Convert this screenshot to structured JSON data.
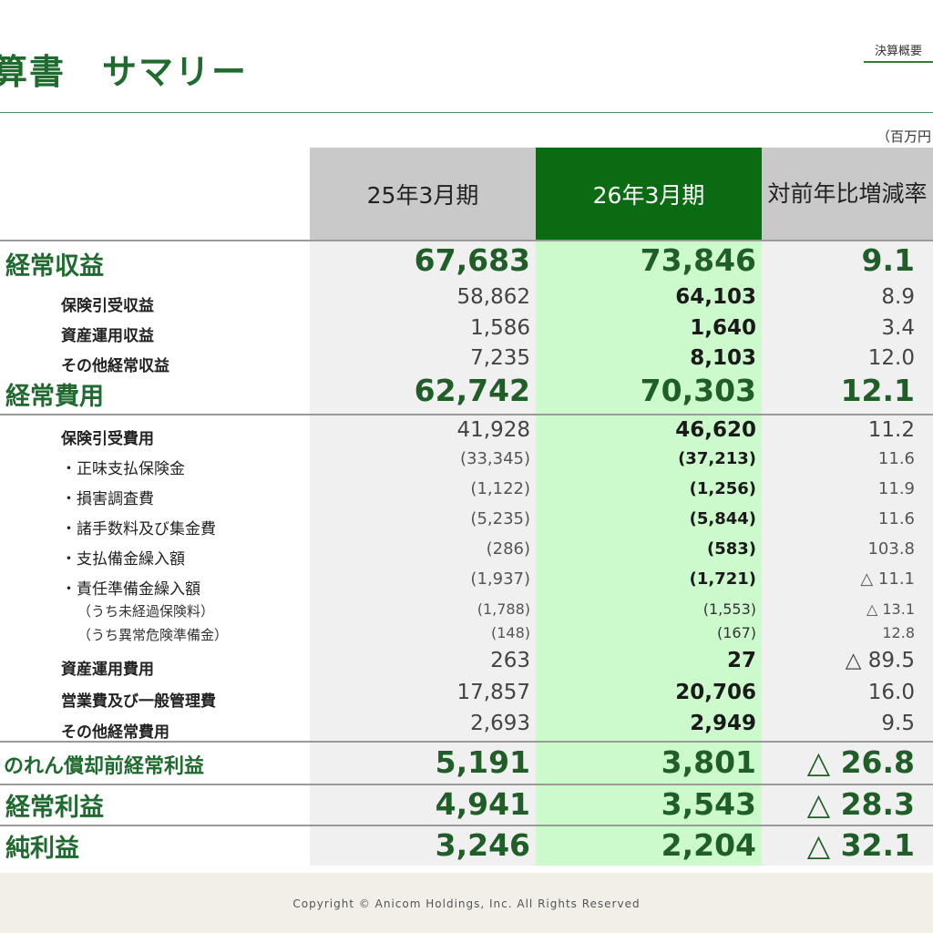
{
  "header": {
    "title": "算書　サマリー",
    "section_tag": "決算概要",
    "unit": "（百万円"
  },
  "columns": {
    "prev": "25年3月期",
    "curr": "26年3月期",
    "yoy_line1": "対前年比",
    "yoy_line2": "増減率"
  },
  "rows": [
    {
      "label": "経常収益",
      "prev": "67,683",
      "curr": "73,846",
      "yoy": "9.1"
    },
    {
      "label": "保険引受収益",
      "prev": "58,862",
      "curr": "64,103",
      "yoy": "8.9"
    },
    {
      "label": "資産運用収益",
      "prev": "1,586",
      "curr": "1,640",
      "yoy": "3.4"
    },
    {
      "label": "その他経常収益",
      "prev": "7,235",
      "curr": "8,103",
      "yoy": "12.0"
    },
    {
      "label": "経常費用",
      "prev": "62,742",
      "curr": "70,303",
      "yoy": "12.1"
    },
    {
      "label": "保険引受費用",
      "prev": "41,928",
      "curr": "46,620",
      "yoy": "11.2"
    },
    {
      "label": "・正味支払保険金",
      "prev": "(33,345)",
      "curr": "(37,213)",
      "yoy": "11.6"
    },
    {
      "label": "・損害調査費",
      "prev": "(1,122)",
      "curr": "(1,256)",
      "yoy": "11.9"
    },
    {
      "label": "・諸手数料及び集金費",
      "prev": "(5,235)",
      "curr": "(5,844)",
      "yoy": "11.6"
    },
    {
      "label": "・支払備金繰入額",
      "prev": "(286)",
      "curr": "(583)",
      "yoy": "103.8"
    },
    {
      "label": "・責任準備金繰入額",
      "prev": "(1,937)",
      "curr": "(1,721)",
      "yoy": "△ 11.1"
    },
    {
      "label": "（うち未経過保険料）",
      "prev": "(1,788)",
      "curr": "(1,553)",
      "yoy": "△ 13.1"
    },
    {
      "label": "（うち異常危険準備金）",
      "prev": "(148)",
      "curr": "(167)",
      "yoy": "12.8"
    },
    {
      "label": "資産運用費用",
      "prev": "263",
      "curr": "27",
      "yoy": "△ 89.5"
    },
    {
      "label": "営業費及び一般管理費",
      "prev": "17,857",
      "curr": "20,706",
      "yoy": "16.0"
    },
    {
      "label": "その他経常費用",
      "prev": "2,693",
      "curr": "2,949",
      "yoy": "9.5"
    },
    {
      "label": "のれん償却前経常利益",
      "prev": "5,191",
      "curr": "3,801",
      "yoy": "△ 26.8"
    },
    {
      "label": "経常利益",
      "prev": "4,941",
      "curr": "3,543",
      "yoy": "△ 28.3"
    },
    {
      "label": "純利益",
      "prev": "3,246",
      "curr": "2,204",
      "yoy": "△ 32.1"
    }
  ],
  "footer": {
    "copyright": "Copyright © Anicom Holdings, Inc. All Rights Reserved"
  }
}
